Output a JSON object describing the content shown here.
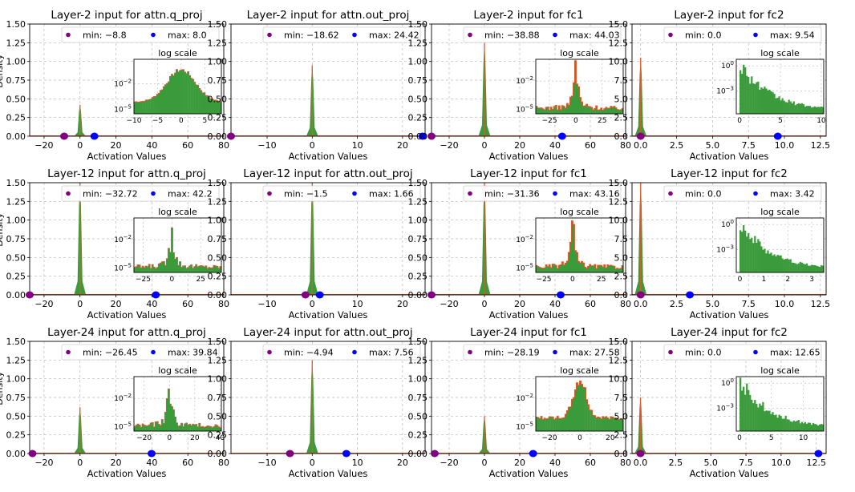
{
  "figure": {
    "ylabel": "Density"
  },
  "chart_data": [
    {
      "type": "histogram",
      "title": "Layer-2 input for attn.q_proj",
      "xlabel": "Activation Values",
      "xlim": [
        -28,
        80
      ],
      "ylim": [
        0,
        1.5
      ],
      "xticks": [
        -20,
        0,
        20,
        40,
        60,
        80
      ],
      "yticks": [
        "0.00",
        "0.25",
        "0.50",
        "0.75",
        "1.00",
        "1.25",
        "1.50"
      ],
      "legend": [
        {
          "label": "min: -8.8",
          "color": "#800080"
        },
        {
          "label": "max: 8.0",
          "color": "#0000ff"
        }
      ],
      "min_value": -8.8,
      "max_value": 8.0,
      "peak": 0.42,
      "inset": {
        "title": "log scale",
        "xlim": [
          -10,
          8.5
        ],
        "xticks": [
          -10,
          -5,
          0,
          5
        ],
        "yticks": [
          {
            "label": "10^-2",
            "frac": 0.45
          },
          {
            "label": "10^-5",
            "frac": 0.92
          }
        ],
        "shape": "dome"
      }
    },
    {
      "type": "histogram",
      "title": "Layer-2 input for attn.out_proj",
      "xlabel": "Activation Values",
      "xlim": [
        -18,
        25
      ],
      "ylim": [
        0,
        1.5
      ],
      "xticks": [
        -10,
        0,
        10,
        20
      ],
      "yticks": [
        "0.00",
        "0.25",
        "0.50",
        "0.75",
        "1.00",
        "1.25",
        "1.50"
      ],
      "legend": [
        {
          "label": "min: -18.62",
          "color": "#800080"
        },
        {
          "label": "max: 24.42",
          "color": "#0000ff"
        }
      ],
      "min_value": -18.62,
      "max_value": 24.42,
      "peak": 0.95
    },
    {
      "type": "histogram",
      "title": "Layer-2 input for fc1",
      "xlabel": "Activation Values",
      "xlim": [
        -30,
        80
      ],
      "ylim": [
        0,
        1.5
      ],
      "xticks": [
        -20,
        0,
        20,
        40,
        60,
        80
      ],
      "yticks": [
        "0.00",
        "0.25",
        "0.50",
        "0.75",
        "1.00",
        "1.25",
        "1.50"
      ],
      "legend": [
        {
          "label": "min: -38.88",
          "color": "#800080"
        },
        {
          "label": "max: 44.03",
          "color": "#0000ff"
        }
      ],
      "min_value": -38.88,
      "max_value": 44.03,
      "peak": 1.25,
      "inset": {
        "title": "log scale",
        "xlim": [
          -38,
          45
        ],
        "xticks": [
          -25,
          0,
          25
        ],
        "yticks": [
          {
            "label": "10^-2",
            "frac": 0.4
          },
          {
            "label": "10^-5",
            "frac": 0.92
          }
        ],
        "shape": "spike"
      }
    },
    {
      "type": "histogram",
      "title": "Layer-2 input for fc2",
      "xlabel": "Activation Values",
      "xlim": [
        -0.6,
        12.9
      ],
      "ylim": [
        0,
        15
      ],
      "xticks": [
        "0.0",
        "2.5",
        "5.0",
        "7.5",
        "10.0",
        "12.5"
      ],
      "yticks": [
        "0.0",
        "2.5",
        "5.0",
        "7.5",
        "10.0",
        "12.5",
        "15.0"
      ],
      "legend": [
        {
          "label": "min: 0.0",
          "color": "#800080"
        },
        {
          "label": "max: 9.54",
          "color": "#0000ff"
        }
      ],
      "min_value": 0.0,
      "max_value": 9.54,
      "peak": 10.5,
      "inset": {
        "title": "log scale",
        "xlim": [
          -0.4,
          10.3
        ],
        "xticks": [
          0,
          5,
          10
        ],
        "yticks": [
          {
            "label": "10^0",
            "frac": 0.12
          },
          {
            "label": "10^-3",
            "frac": 0.58
          }
        ],
        "shape": "decay"
      }
    },
    {
      "type": "histogram",
      "title": "Layer-12 input for attn.q_proj",
      "xlabel": "Activation Values",
      "xlim": [
        -28,
        80
      ],
      "ylim": [
        0,
        1.5
      ],
      "xticks": [
        -20,
        0,
        20,
        40,
        60,
        80
      ],
      "yticks": [
        "0.00",
        "0.25",
        "0.50",
        "0.75",
        "1.00",
        "1.25",
        "1.50"
      ],
      "legend": [
        {
          "label": "min: -32.72",
          "color": "#800080"
        },
        {
          "label": "max: 42.2",
          "color": "#0000ff"
        }
      ],
      "min_value": -32.72,
      "max_value": 42.2,
      "peak": 1.5,
      "inset": {
        "title": "log scale",
        "xlim": [
          -33,
          43
        ],
        "xticks": [
          -25,
          0,
          25
        ],
        "yticks": [
          {
            "label": "10^-2",
            "frac": 0.4
          },
          {
            "label": "10^-5",
            "frac": 0.92
          }
        ],
        "shape": "spike"
      }
    },
    {
      "type": "histogram",
      "title": "Layer-12 input for attn.out_proj",
      "xlabel": "Activation Values",
      "xlim": [
        -18,
        25
      ],
      "ylim": [
        0,
        1.5
      ],
      "xticks": [
        -10,
        0,
        10,
        20
      ],
      "yticks": [
        "0.00",
        "0.25",
        "0.50",
        "0.75",
        "1.00",
        "1.25",
        "1.50"
      ],
      "legend": [
        {
          "label": "min: -1.5",
          "color": "#800080"
        },
        {
          "label": "max: 1.66",
          "color": "#0000ff"
        }
      ],
      "min_value": -1.5,
      "max_value": 1.66,
      "peak": 1.5
    },
    {
      "type": "histogram",
      "title": "Layer-12 input for fc1",
      "xlabel": "Activation Values",
      "xlim": [
        -30,
        80
      ],
      "ylim": [
        0,
        1.5
      ],
      "xticks": [
        -20,
        0,
        20,
        40,
        60,
        80
      ],
      "yticks": [
        "0.00",
        "0.25",
        "0.50",
        "0.75",
        "1.00",
        "1.25",
        "1.50"
      ],
      "legend": [
        {
          "label": "min: -31.36",
          "color": "#800080"
        },
        {
          "label": "max: 43.16",
          "color": "#0000ff"
        }
      ],
      "min_value": -31.36,
      "max_value": 43.16,
      "peak": 1.5,
      "inset": {
        "title": "log scale",
        "xlim": [
          -32,
          44
        ],
        "xticks": [
          -25,
          0,
          25
        ],
        "yticks": [
          {
            "label": "10^-2",
            "frac": 0.4
          },
          {
            "label": "10^-5",
            "frac": 0.92
          }
        ],
        "shape": "spike"
      }
    },
    {
      "type": "histogram",
      "title": "Layer-12 input for fc2",
      "xlabel": "Activation Values",
      "xlim": [
        -0.6,
        12.9
      ],
      "ylim": [
        0,
        15
      ],
      "xticks": [
        "0.0",
        "2.5",
        "5.0",
        "7.5",
        "10.0",
        "12.5"
      ],
      "yticks": [
        "0.0",
        "2.5",
        "5.0",
        "7.5",
        "10.0",
        "12.5",
        "15.0"
      ],
      "legend": [
        {
          "label": "min: 0.0",
          "color": "#800080"
        },
        {
          "label": "max: 3.42",
          "color": "#0000ff"
        }
      ],
      "min_value": 0.0,
      "max_value": 3.42,
      "peak": 15,
      "inset": {
        "title": "log scale",
        "xlim": [
          -0.15,
          3.5
        ],
        "xticks": [
          0,
          1,
          2,
          3
        ],
        "yticks": [
          {
            "label": "10^0",
            "frac": 0.12
          },
          {
            "label": "10^-3",
            "frac": 0.58
          }
        ],
        "shape": "decay"
      }
    },
    {
      "type": "histogram",
      "title": "Layer-24 input for attn.q_proj",
      "xlabel": "Activation Values",
      "xlim": [
        -28,
        80
      ],
      "ylim": [
        0,
        1.5
      ],
      "xticks": [
        -20,
        0,
        20,
        40,
        60,
        80
      ],
      "yticks": [
        "0.00",
        "0.25",
        "0.50",
        "0.75",
        "1.00",
        "1.25",
        "1.50"
      ],
      "legend": [
        {
          "label": "min: -26.45",
          "color": "#800080"
        },
        {
          "label": "max: 39.84",
          "color": "#0000ff"
        }
      ],
      "min_value": -26.45,
      "max_value": 39.84,
      "peak": 0.62,
      "inset": {
        "title": "log scale",
        "xlim": [
          -28,
          41
        ],
        "xticks": [
          -20,
          0,
          20,
          40
        ],
        "yticks": [
          {
            "label": "10^-2",
            "frac": 0.4
          },
          {
            "label": "10^-5",
            "frac": 0.92
          }
        ],
        "shape": "spike"
      }
    },
    {
      "type": "histogram",
      "title": "Layer-24 input for attn.out_proj",
      "xlabel": "Activation Values",
      "xlim": [
        -18,
        25
      ],
      "ylim": [
        0,
        1.5
      ],
      "xticks": [
        -10,
        0,
        10,
        20
      ],
      "yticks": [
        "0.00",
        "0.25",
        "0.50",
        "0.75",
        "1.00",
        "1.25",
        "1.50"
      ],
      "legend": [
        {
          "label": "min: -4.94",
          "color": "#800080"
        },
        {
          "label": "max: 7.56",
          "color": "#0000ff"
        }
      ],
      "min_value": -4.94,
      "max_value": 7.56,
      "peak": 1.25
    },
    {
      "type": "histogram",
      "title": "Layer-24 input for fc1",
      "xlabel": "Activation Values",
      "xlim": [
        -30,
        80
      ],
      "ylim": [
        0,
        1.5
      ],
      "xticks": [
        -20,
        0,
        20,
        40,
        60,
        80
      ],
      "yticks": [
        "0.00",
        "0.25",
        "0.50",
        "0.75",
        "1.00",
        "1.25",
        "1.50"
      ],
      "legend": [
        {
          "label": "min: -28.19",
          "color": "#800080"
        },
        {
          "label": "max: 27.58",
          "color": "#0000ff"
        }
      ],
      "min_value": -28.19,
      "max_value": 27.58,
      "peak": 0.5,
      "inset": {
        "title": "log scale",
        "xlim": [
          -29,
          28.5
        ],
        "xticks": [
          -20,
          0,
          20
        ],
        "yticks": [
          {
            "label": "10^-2",
            "frac": 0.4
          },
          {
            "label": "10^-5",
            "frac": 0.92
          }
        ],
        "shape": "dome-narrow"
      }
    },
    {
      "type": "histogram",
      "title": "Layer-24 input for fc2",
      "xlabel": "Activation Values",
      "xlim": [
        -0.6,
        13.2
      ],
      "ylim": [
        0,
        15
      ],
      "xticks": [
        "0.0",
        "2.5",
        "5.0",
        "7.5",
        "10.0",
        "12.5"
      ],
      "yticks": [
        "0.0",
        "2.5",
        "5.0",
        "7.5",
        "10.0",
        "12.5",
        "15.0"
      ],
      "legend": [
        {
          "label": "min: 0.0",
          "color": "#800080"
        },
        {
          "label": "max: 12.65",
          "color": "#0000ff"
        }
      ],
      "min_value": 0.0,
      "max_value": 12.65,
      "peak": 7.5,
      "inset": {
        "title": "log scale",
        "xlim": [
          -0.5,
          13.2
        ],
        "xticks": [
          0,
          5,
          10
        ],
        "yticks": [
          {
            "label": "10^0",
            "frac": 0.12
          },
          {
            "label": "10^-3",
            "frac": 0.58
          }
        ],
        "shape": "decay"
      }
    }
  ],
  "colors": {
    "hist_fill": "#3a9b3a",
    "hist_edge": "#e8552a",
    "min_marker": "#800080",
    "max_marker": "#0000ff",
    "grid": "#b8b8b8"
  }
}
